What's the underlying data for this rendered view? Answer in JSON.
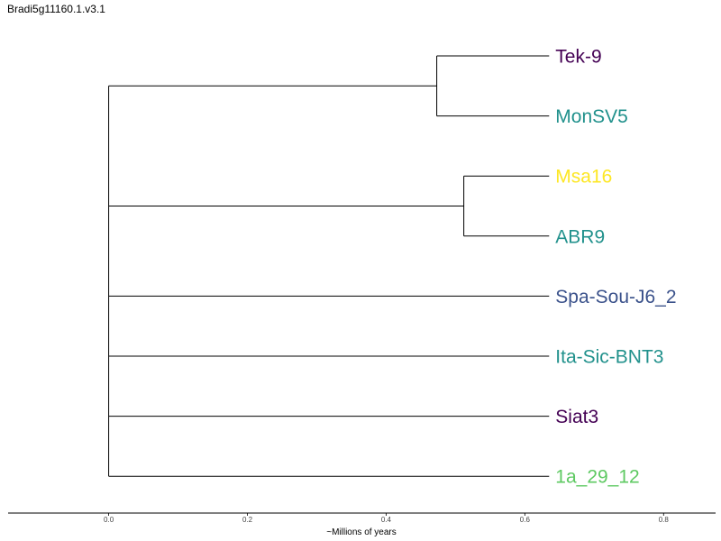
{
  "title": "Bradi5g11160.1.v3.1",
  "chart_data": {
    "type": "dendrogram",
    "title": "Bradi5g11160.1.v3.1",
    "xlabel": "~Millions of years",
    "xlim": [
      -0.145,
      0.875
    ],
    "x_ticks": [
      {
        "value": 0.0,
        "label": "0.0"
      },
      {
        "value": 0.2,
        "label": "0.2"
      },
      {
        "value": 0.4,
        "label": "0.4"
      },
      {
        "value": 0.6,
        "label": "0.6"
      },
      {
        "value": 0.8,
        "label": "0.8"
      }
    ],
    "tip_x": 0.635,
    "leaves": [
      {
        "name": "Tek-9",
        "color": "#440154"
      },
      {
        "name": "MonSV5",
        "color": "#21918c"
      },
      {
        "name": "Msa16",
        "color": "#fde725"
      },
      {
        "name": "ABR9",
        "color": "#21918c"
      },
      {
        "name": "Spa-Sou-J6_2",
        "color": "#3b528b"
      },
      {
        "name": "Ita-Sic-BNT3",
        "color": "#21918c"
      },
      {
        "name": "Siat3",
        "color": "#440154"
      },
      {
        "name": "1a_29_12",
        "color": "#5ec962"
      }
    ],
    "clades": [
      {
        "members": [
          "Tek-9",
          "MonSV5"
        ],
        "node_x": 0.473
      },
      {
        "members": [
          "Msa16",
          "ABR9"
        ],
        "node_x": 0.512
      }
    ],
    "root_x": 0.0
  }
}
